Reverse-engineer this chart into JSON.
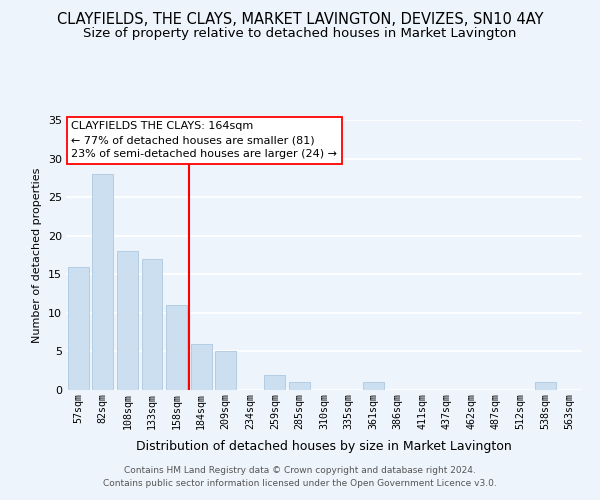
{
  "title": "CLAYFIELDS, THE CLAYS, MARKET LAVINGTON, DEVIZES, SN10 4AY",
  "subtitle": "Size of property relative to detached houses in Market Lavington",
  "xlabel": "Distribution of detached houses by size in Market Lavington",
  "ylabel": "Number of detached properties",
  "bar_labels": [
    "57sqm",
    "82sqm",
    "108sqm",
    "133sqm",
    "158sqm",
    "184sqm",
    "209sqm",
    "234sqm",
    "259sqm",
    "285sqm",
    "310sqm",
    "335sqm",
    "361sqm",
    "386sqm",
    "411sqm",
    "437sqm",
    "462sqm",
    "487sqm",
    "512sqm",
    "538sqm",
    "563sqm"
  ],
  "bar_values": [
    16,
    28,
    18,
    17,
    11,
    6,
    5,
    0,
    2,
    1,
    0,
    0,
    1,
    0,
    0,
    0,
    0,
    0,
    0,
    1,
    0
  ],
  "bar_color": "#ccdff0",
  "bar_edge_color": "#adc8e0",
  "vline_x": 4.5,
  "vline_color": "red",
  "annotation_title": "CLAYFIELDS THE CLAYS: 164sqm",
  "annotation_line1": "← 77% of detached houses are smaller (81)",
  "annotation_line2": "23% of semi-detached houses are larger (24) →",
  "annotation_box_color": "white",
  "annotation_box_edge_color": "red",
  "ylim": [
    0,
    35
  ],
  "yticks": [
    0,
    5,
    10,
    15,
    20,
    25,
    30,
    35
  ],
  "footer1": "Contains HM Land Registry data © Crown copyright and database right 2024.",
  "footer2": "Contains public sector information licensed under the Open Government Licence v3.0.",
  "bg_color": "#eef4fb",
  "grid_color": "white",
  "title_fontsize": 10.5,
  "subtitle_fontsize": 9.5
}
